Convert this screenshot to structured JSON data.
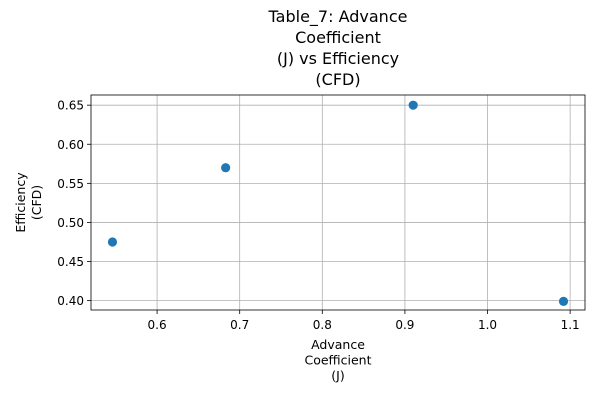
{
  "chart_data": {
    "type": "scatter",
    "title": [
      "Table_7: Advance",
      "Coefficient",
      "(J) vs Efficiency",
      "(CFD)"
    ],
    "xlabel": [
      "Advance",
      "Coefficient",
      "(J)"
    ],
    "ylabel": [
      "Efficiency",
      "(CFD)"
    ],
    "x": [
      0.546,
      0.683,
      0.91,
      1.092
    ],
    "y": [
      0.475,
      0.57,
      0.65,
      0.399
    ],
    "xlim": [
      0.52,
      1.118
    ],
    "ylim": [
      0.388,
      0.663
    ],
    "xticks": [
      0.6,
      0.7,
      0.8,
      0.9,
      1.0,
      1.1
    ],
    "xtick_labels": [
      "0.6",
      "0.7",
      "0.8",
      "0.9",
      "1.0",
      "1.1"
    ],
    "yticks": [
      0.4,
      0.45,
      0.5,
      0.55,
      0.6,
      0.65
    ],
    "ytick_labels": [
      "0.40",
      "0.45",
      "0.50",
      "0.55",
      "0.60",
      "0.65"
    ],
    "grid": true,
    "marker_color": "#1f77b4"
  }
}
